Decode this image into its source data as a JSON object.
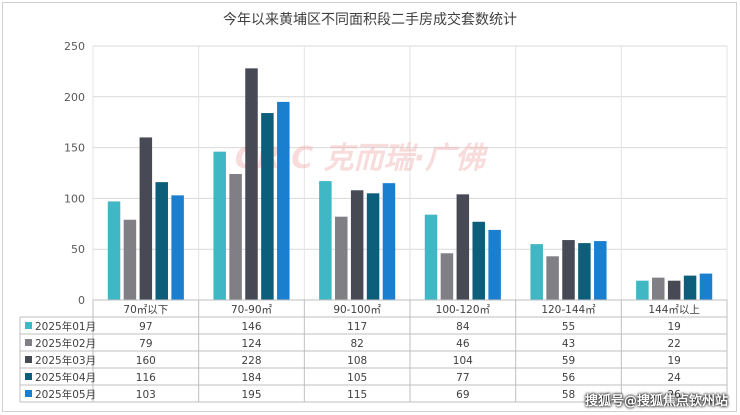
{
  "chart_data": {
    "type": "bar",
    "title": "今年以来黄埔区不同面积段二手房成交套数统计",
    "categories": [
      "70㎡以下",
      "70-90㎡",
      "90-100㎡",
      "100-120㎡",
      "120-144㎡",
      "144㎡以上"
    ],
    "series": [
      {
        "name": "2025年01月",
        "color": "#3fb7c4",
        "values": [
          97,
          146,
          117,
          84,
          55,
          19
        ]
      },
      {
        "name": "2025年02月",
        "color": "#7f7f85",
        "values": [
          79,
          124,
          82,
          46,
          43,
          22
        ]
      },
      {
        "name": "2025年03月",
        "color": "#474a55",
        "values": [
          160,
          228,
          108,
          104,
          59,
          19
        ]
      },
      {
        "name": "2025年04月",
        "color": "#0d5e7a",
        "values": [
          116,
          184,
          105,
          77,
          56,
          24
        ]
      },
      {
        "name": "2025年05月",
        "color": "#1b7fd0",
        "values": [
          103,
          195,
          115,
          69,
          58,
          26
        ]
      }
    ],
    "ylim": [
      0,
      250
    ],
    "yticks": [
      0,
      50,
      100,
      150,
      200,
      250
    ],
    "grid": true,
    "legend": "data table, left column"
  },
  "watermark": "CRIC 克而瑞·广佛",
  "credit": "搜狐号@搜狐焦点钦州站"
}
